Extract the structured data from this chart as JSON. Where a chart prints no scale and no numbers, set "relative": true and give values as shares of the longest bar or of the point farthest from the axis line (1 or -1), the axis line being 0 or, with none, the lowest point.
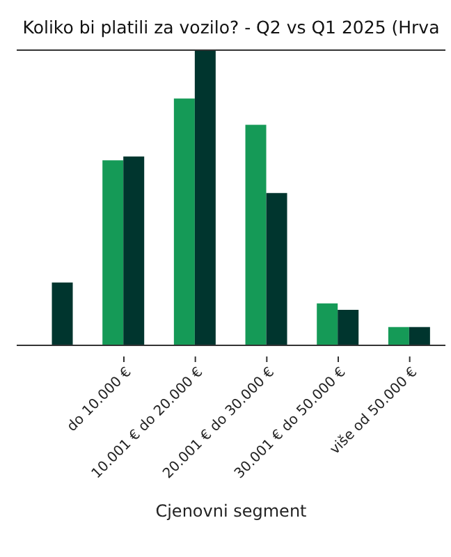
{
  "chart_data": {
    "type": "bar",
    "title": "Koliko bi platili za vozilo? - Q2 vs Q1 2025 (Hrva",
    "xlabel": "Cjenovni segment",
    "relative": true,
    "categories": [
      null,
      "do 10.000 €",
      "10.001 € do 20.000 €",
      "20.001 € do 30.000 €",
      "30.001 € do 50.000 €",
      "više od 50.000 €"
    ],
    "series": [
      {
        "color": "#159a57",
        "values": [
          null,
          0.627,
          0.836,
          0.747,
          0.142,
          0.062
        ]
      },
      {
        "color": "#00352e",
        "values": [
          0.213,
          0.64,
          1,
          0.516,
          0.12,
          0.062
        ]
      }
    ],
    "grid": false,
    "legend": false
  }
}
